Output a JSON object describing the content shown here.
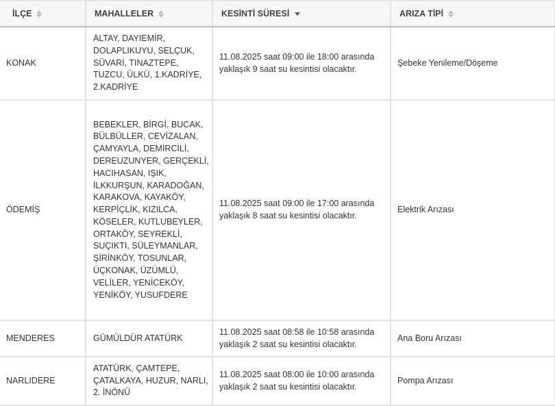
{
  "headers": [
    {
      "label": "İLÇE",
      "sort": "none"
    },
    {
      "label": "MAHALLELER",
      "sort": "none"
    },
    {
      "label": "KESİNTİ SÜRESİ",
      "sort": "descending"
    },
    {
      "label": "ARIZA TİPİ",
      "sort": "none"
    }
  ],
  "rows": [
    {
      "ilce": "KONAK",
      "mahalleler": "ALTAY, DAYIEMİR, DOLAPLIKUYU, SELÇUK, SÜVARİ, TINAZTEPE, TUZCU, ÜLKÜ, 1.KADRİYE, 2.KADRİYE",
      "sure": "11.08.2025 saat 09:00 ile 18:00 arasında yaklaşık 9 saat su kesintisi olacaktır.",
      "tip": "Şebeke Yenileme/Döşeme"
    },
    {
      "ilce": "ÖDEMİŞ",
      "mahalleler": "BEBEKLER, BİRGİ, BUCAK, BÜLBÜLLER, CEVİZALAN, ÇAMYAYLA, DEMİRCİLİ, DEREUZUNYER, GERÇEKLİ, HACIHASAN, IŞIK, İLKKURŞUN, KARADOĞAN, KARAKOVA, KAYAKÖY, KERPİÇLİK, KIZILCA, KÖSELER, KUTLUBEYLER, ORTAKÖY, SEYREKLİ, SUÇIKTI, SÜLEYMANLAR, ŞİRİNKÖY, TOSUNLAR, ÜÇKONAK, ÜZÜMLÜ, VELİLER, YENİCEKÖY, YENİKÖY, YUSUFDERE",
      "sure": "11.08.2025 saat 09:00 ile 17:00 arasında yaklaşık 8 saat su kesintisi olacaktır.",
      "tip": "Elektrik Arızası"
    },
    {
      "ilce": "MENDERES",
      "mahalleler": "GÜMÜLDÜR ATATÜRK",
      "sure": "11.08.2025 saat 08:58 ile 10:58 arasında yaklaşık 2 saat su kesintisi olacaktır.",
      "tip": "Ana Boru Arızası"
    },
    {
      "ilce": "NARLIDERE",
      "mahalleler": "ATATÜRK, ÇAMTEPE, ÇATALKAYA, HUZUR, NARLI, 2. İNÖNÜ",
      "sure": "11.08.2025 saat 08:00 ile 10:00 arasında yaklaşık 2 saat su kesintisi olacaktır.",
      "tip": "Pompa Arızası"
    }
  ]
}
